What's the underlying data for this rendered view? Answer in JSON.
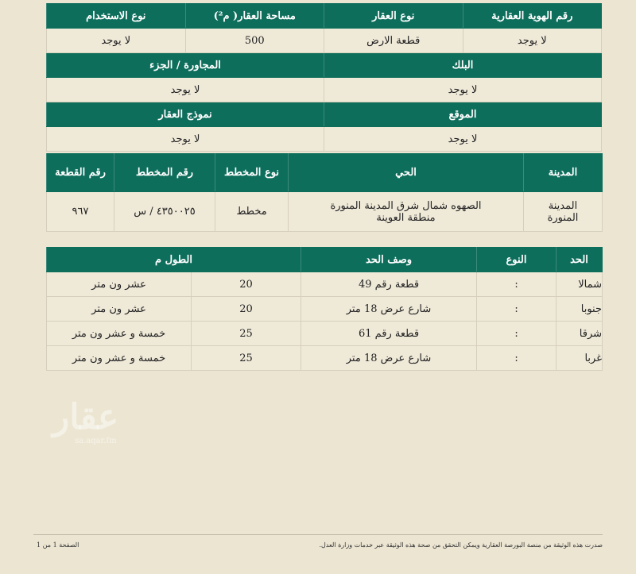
{
  "property": {
    "headers": [
      "رقم الهوية العقارية",
      "نوع العقار",
      "مساحة العقار( م²)",
      "نوع الاستخدام"
    ],
    "values": [
      "لا يوجد",
      "قطعة الارض",
      "500",
      "لا يوجد"
    ]
  },
  "block": {
    "headers": [
      "البلك",
      "المجاورة / الجزء"
    ],
    "values": [
      "لا يوجد",
      "لا يوجد"
    ]
  },
  "location": {
    "headers": [
      "الموقع",
      "نموذج العقار"
    ],
    "values": [
      "لا يوجد",
      "لا يوجد"
    ]
  },
  "plot": {
    "headers": [
      "المدينة",
      "الحي",
      "نوع المخطط",
      "رقم المخطط",
      "رقم القطعة"
    ],
    "values": [
      "المدينة المنورة",
      "الصهوه شمال شرق المدينة المنورة منطقة العوينة",
      "مخطط",
      "٤٣٥٠٠٢٥ / س",
      "٩٦٧"
    ]
  },
  "boundaries": {
    "headers": [
      "الحد",
      "النوع",
      "وصف الحد",
      "الطول م"
    ],
    "rows": [
      [
        "شمالا",
        ":",
        "قطعة رقم 49",
        "20",
        "عشر ون متر"
      ],
      [
        "جنوبا",
        ":",
        "شارع عرض 18 متر",
        "20",
        "عشر ون متر"
      ],
      [
        "شرقا",
        ":",
        "قطعة رقم 61",
        "25",
        "خمسة و عشر ون متر"
      ],
      [
        "غربا",
        ":",
        "شارع عرض 18 متر",
        "25",
        "خمسة و عشر ون متر"
      ]
    ]
  },
  "footer": {
    "note": "صدرت هذه الوثيقة من منصة البورصة العقارية ويمكن التحقق من صحة هذه الوثيقة عبر خدمات وزارة العدل.",
    "page": "الصفحة 1 من 1"
  },
  "watermark": {
    "text": "عقار",
    "sub": "sa.aqar.fm"
  },
  "colors": {
    "header": "#0e6e5c",
    "background": "#ece5d2"
  }
}
